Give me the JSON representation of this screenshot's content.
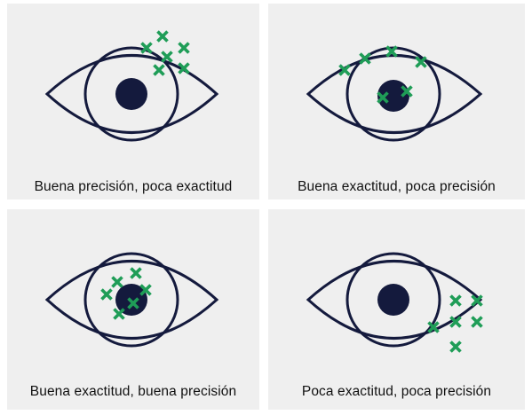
{
  "colors": {
    "eye_stroke": "#141a3d",
    "pupil": "#141a3d",
    "mark": "#1f9d57",
    "panel_bg": "#efefef"
  },
  "mark_icon": "x-mark-icon",
  "panels": [
    {
      "caption": "Buena precisión, poca exactitud"
    },
    {
      "caption": "Buena exactitud, poca precisión"
    },
    {
      "caption": "Buena exactitud, buena precisión"
    },
    {
      "caption": "Poca exactitud, poca precisión"
    }
  ]
}
